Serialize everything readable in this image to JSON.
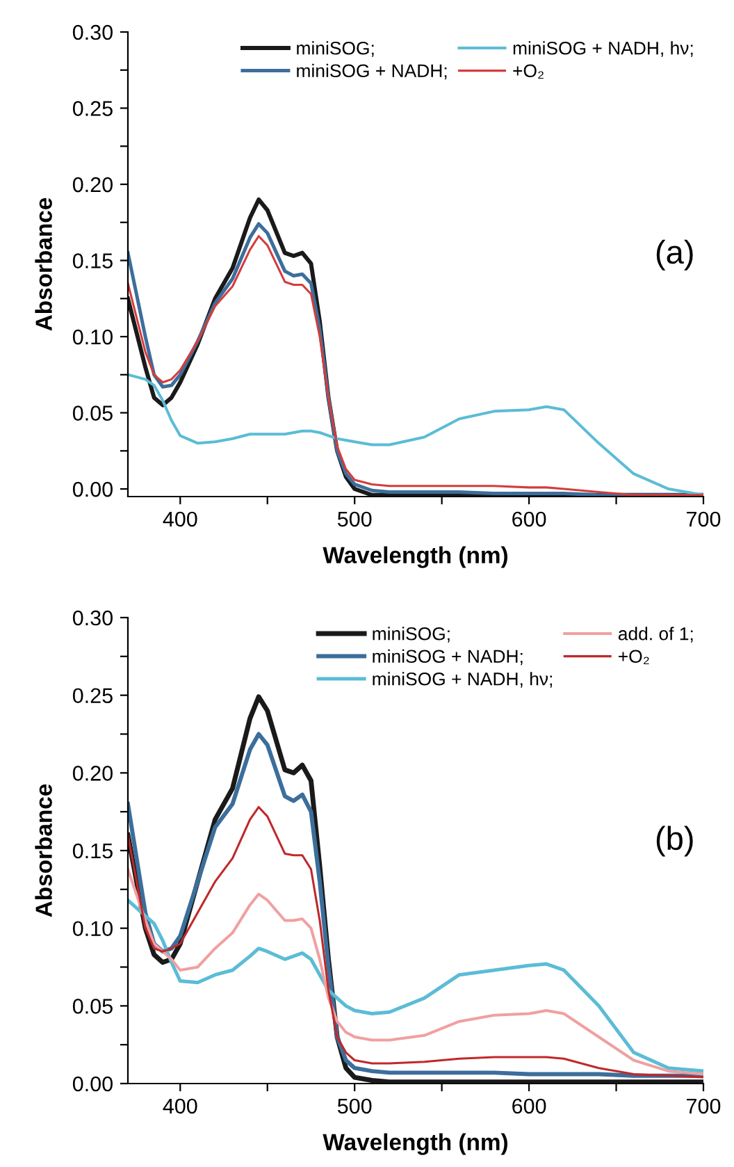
{
  "chart_data": [
    {
      "type": "line",
      "xlabel": "Wavelength (nm)",
      "ylabel": "Absorbance",
      "annotations": [
        "(a)"
      ],
      "x": [
        370,
        380,
        385,
        390,
        395,
        400,
        410,
        420,
        430,
        440,
        445,
        450,
        460,
        465,
        470,
        475,
        480,
        485,
        490,
        495,
        500,
        510,
        520,
        540,
        560,
        580,
        600,
        610,
        620,
        640,
        660,
        680,
        700
      ],
      "series": [
        {
          "name": "miniSOG;",
          "color": "#1a1a1a",
          "values": [
            0.125,
            0.08,
            0.06,
            0.055,
            0.06,
            0.07,
            0.095,
            0.125,
            0.145,
            0.178,
            0.19,
            0.183,
            0.155,
            0.153,
            0.155,
            0.148,
            0.11,
            0.06,
            0.025,
            0.008,
            0.0,
            -0.004,
            -0.004,
            -0.004,
            -0.004,
            -0.004,
            -0.004,
            -0.004,
            -0.004,
            -0.004,
            -0.004,
            -0.004,
            -0.004
          ]
        },
        {
          "name": "miniSOG + NADH;",
          "color": "#3c6e9b",
          "values": [
            0.155,
            0.1,
            0.075,
            0.067,
            0.068,
            0.075,
            0.097,
            0.122,
            0.138,
            0.165,
            0.174,
            0.168,
            0.143,
            0.14,
            0.141,
            0.135,
            0.105,
            0.06,
            0.025,
            0.01,
            0.003,
            -0.001,
            -0.002,
            -0.002,
            -0.002,
            -0.003,
            -0.003,
            -0.003,
            -0.003,
            -0.004,
            -0.004,
            -0.004,
            -0.004
          ]
        },
        {
          "name": "miniSOG + NADH, hν;",
          "color": "#5bbcd6",
          "values": [
            0.075,
            0.072,
            0.068,
            0.058,
            0.045,
            0.035,
            0.03,
            0.031,
            0.033,
            0.036,
            0.036,
            0.036,
            0.036,
            0.037,
            0.038,
            0.038,
            0.037,
            0.035,
            0.033,
            0.032,
            0.031,
            0.029,
            0.029,
            0.034,
            0.046,
            0.051,
            0.052,
            0.054,
            0.052,
            0.03,
            0.01,
            0.0,
            -0.004
          ]
        },
        {
          "name": "+O₂",
          "color": "#d43c3c",
          "values": [
            0.135,
            0.09,
            0.075,
            0.07,
            0.072,
            0.078,
            0.097,
            0.12,
            0.133,
            0.157,
            0.166,
            0.16,
            0.136,
            0.134,
            0.134,
            0.128,
            0.1,
            0.06,
            0.028,
            0.013,
            0.006,
            0.003,
            0.002,
            0.002,
            0.002,
            0.002,
            0.001,
            0.001,
            0.0,
            -0.002,
            -0.004,
            -0.004,
            -0.004
          ]
        }
      ],
      "xlim": [
        370,
        700
      ],
      "ylim": [
        -0.005,
        0.3
      ],
      "xticks": [
        400,
        {
          "value": 450,
          "label": null
        },
        500,
        {
          "value": 550,
          "label": null
        },
        600,
        {
          "value": 650,
          "label": null
        },
        700
      ],
      "yticks": [
        {
          "value": 0,
          "label": "0.00"
        },
        {
          "value": 0.025,
          "label": null
        },
        {
          "value": 0.05,
          "label": "0.05"
        },
        {
          "value": 0.075,
          "label": null
        },
        {
          "value": 0.1,
          "label": "0.10"
        },
        {
          "value": 0.125,
          "label": null
        },
        {
          "value": 0.15,
          "label": "0.15"
        },
        {
          "value": 0.175,
          "label": null
        },
        {
          "value": 0.2,
          "label": "0.20"
        },
        {
          "value": 0.225,
          "label": null
        },
        {
          "value": 0.25,
          "label": "0.25"
        },
        {
          "value": 0.275,
          "label": null
        },
        {
          "value": 0.3,
          "label": "0.30"
        }
      ],
      "grid": false,
      "legend": "top right"
    },
    {
      "type": "line",
      "xlabel": "Wavelength (nm)",
      "ylabel": "Absorbance",
      "annotations": [
        "(b)"
      ],
      "x": [
        370,
        380,
        385,
        390,
        395,
        400,
        410,
        420,
        430,
        440,
        445,
        450,
        460,
        465,
        470,
        475,
        480,
        485,
        490,
        495,
        500,
        510,
        520,
        540,
        560,
        580,
        600,
        610,
        620,
        640,
        660,
        680,
        700
      ],
      "series": [
        {
          "name": "miniSOG;",
          "color": "#1a1a1a",
          "values": [
            0.16,
            0.1,
            0.083,
            0.078,
            0.08,
            0.09,
            0.13,
            0.17,
            0.19,
            0.235,
            0.249,
            0.24,
            0.202,
            0.2,
            0.205,
            0.195,
            0.14,
            0.08,
            0.03,
            0.01,
            0.004,
            0.002,
            0.001,
            0.001,
            0.001,
            0.001,
            0.001,
            0.001,
            0.001,
            0.001,
            0.001,
            0.001,
            0.001
          ]
        },
        {
          "name": "miniSOG + NADH;",
          "color": "#3c6e9b",
          "values": [
            0.18,
            0.11,
            0.09,
            0.085,
            0.087,
            0.095,
            0.13,
            0.165,
            0.18,
            0.215,
            0.225,
            0.218,
            0.185,
            0.182,
            0.186,
            0.175,
            0.13,
            0.075,
            0.03,
            0.015,
            0.01,
            0.008,
            0.007,
            0.007,
            0.007,
            0.007,
            0.006,
            0.006,
            0.006,
            0.006,
            0.005,
            0.005,
            0.005
          ]
        },
        {
          "name": "miniSOG + NADH, hν;",
          "color": "#5bbcd6",
          "values": [
            0.118,
            0.108,
            0.103,
            0.092,
            0.078,
            0.066,
            0.065,
            0.07,
            0.073,
            0.082,
            0.087,
            0.085,
            0.08,
            0.082,
            0.084,
            0.08,
            0.07,
            0.06,
            0.055,
            0.05,
            0.047,
            0.045,
            0.046,
            0.055,
            0.07,
            0.073,
            0.076,
            0.077,
            0.073,
            0.05,
            0.02,
            0.01,
            0.008
          ]
        },
        {
          "name": "add. of 1;",
          "color": "#f0a0a0",
          "values": [
            0.138,
            0.105,
            0.09,
            0.085,
            0.08,
            0.073,
            0.075,
            0.087,
            0.097,
            0.115,
            0.122,
            0.118,
            0.105,
            0.105,
            0.106,
            0.1,
            0.08,
            0.055,
            0.04,
            0.033,
            0.03,
            0.028,
            0.028,
            0.031,
            0.04,
            0.044,
            0.045,
            0.047,
            0.045,
            0.03,
            0.015,
            0.008,
            0.006
          ]
        },
        {
          "name": "+O₂",
          "color": "#c0282b",
          "values": [
            0.16,
            0.1,
            0.087,
            0.085,
            0.087,
            0.09,
            0.11,
            0.13,
            0.145,
            0.17,
            0.178,
            0.172,
            0.148,
            0.147,
            0.147,
            0.138,
            0.105,
            0.06,
            0.03,
            0.02,
            0.015,
            0.013,
            0.013,
            0.014,
            0.016,
            0.017,
            0.017,
            0.017,
            0.016,
            0.01,
            0.006,
            0.005,
            0.004
          ]
        }
      ],
      "xlim": [
        370,
        700
      ],
      "ylim": [
        0,
        0.3
      ],
      "xticks": [
        400,
        {
          "value": 450,
          "label": null
        },
        500,
        {
          "value": 550,
          "label": null
        },
        600,
        {
          "value": 650,
          "label": null
        },
        700
      ],
      "yticks": [
        {
          "value": 0,
          "label": "0.00"
        },
        {
          "value": 0.025,
          "label": null
        },
        {
          "value": 0.05,
          "label": "0.05"
        },
        {
          "value": 0.075,
          "label": null
        },
        {
          "value": 0.1,
          "label": "0.10"
        },
        {
          "value": 0.125,
          "label": null
        },
        {
          "value": 0.15,
          "label": "0.15"
        },
        {
          "value": 0.175,
          "label": null
        },
        {
          "value": 0.2,
          "label": "0.20"
        },
        {
          "value": 0.225,
          "label": null
        },
        {
          "value": 0.25,
          "label": "0.25"
        },
        {
          "value": 0.275,
          "label": null
        },
        {
          "value": 0.3,
          "label": "0.30"
        }
      ],
      "grid": false,
      "legend": "top right"
    }
  ]
}
